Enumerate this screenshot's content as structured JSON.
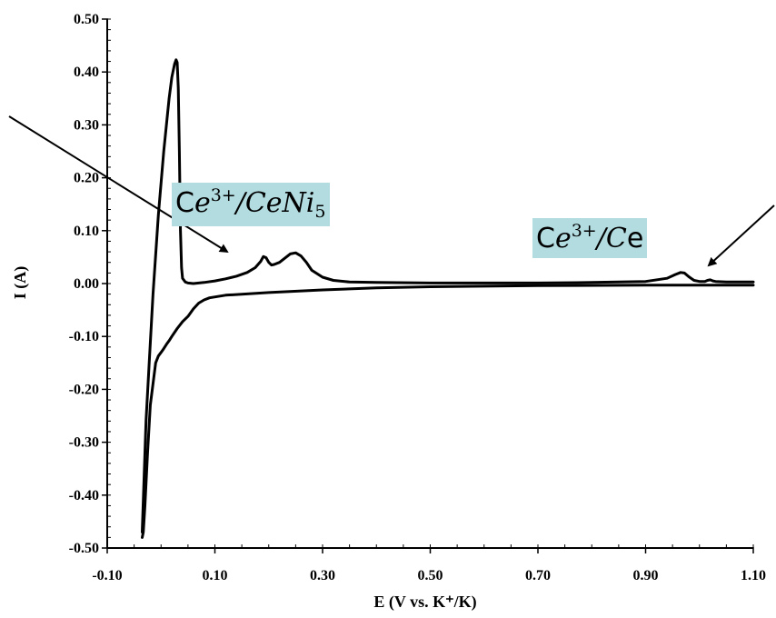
{
  "chart_data": {
    "type": "line",
    "xlabel": "E (V vs. K⁺/K)",
    "ylabel": "I (A)",
    "xlim": [
      -0.1,
      1.1
    ],
    "ylim": [
      -0.5,
      0.5
    ],
    "x_ticks": [
      -0.1,
      0.1,
      0.3,
      0.5,
      0.7,
      0.9,
      1.1
    ],
    "x_tick_labels": [
      "-0.10",
      "0.10",
      "0.30",
      "0.50",
      "0.70",
      "0.90",
      "1.10"
    ],
    "y_ticks": [
      0.5,
      0.4,
      0.3,
      0.2,
      0.1,
      0.0,
      -0.1,
      -0.2,
      -0.3,
      -0.4,
      -0.5
    ],
    "y_tick_labels": [
      "0.50",
      "0.40",
      "0.30",
      "0.20",
      "0.10",
      "0.00",
      "-0.10",
      "-0.20",
      "-0.30",
      "-0.40",
      "-0.50"
    ],
    "grid": false,
    "series": [
      {
        "x": [
          1.1,
          0.9,
          0.7,
          0.5,
          0.4,
          0.3,
          0.2,
          0.12,
          0.09,
          0.08,
          0.07,
          0.06,
          0.05,
          0.04,
          0.03,
          0.02,
          0.015,
          0.01,
          0.005,
          0.0,
          -0.005,
          -0.01,
          -0.02,
          -0.025,
          -0.03,
          -0.033,
          -0.035
        ],
        "y": [
          -0.003,
          -0.003,
          -0.004,
          -0.006,
          -0.008,
          -0.012,
          -0.017,
          -0.022,
          -0.027,
          -0.031,
          -0.037,
          -0.048,
          -0.062,
          -0.072,
          -0.085,
          -0.1,
          -0.108,
          -0.115,
          -0.123,
          -0.13,
          -0.137,
          -0.15,
          -0.23,
          -0.32,
          -0.42,
          -0.47,
          -0.48
        ]
      },
      {
        "x": [
          -0.035,
          -0.032,
          -0.028,
          -0.022,
          -0.015,
          -0.005,
          0.005,
          0.015,
          0.02,
          0.025,
          0.028,
          0.03,
          0.032,
          0.034,
          0.036,
          0.038,
          0.04,
          0.045,
          0.05,
          0.06,
          0.08,
          0.1,
          0.12,
          0.14,
          0.16,
          0.175,
          0.185,
          0.19,
          0.195,
          0.2,
          0.205,
          0.21,
          0.22,
          0.23,
          0.24,
          0.25,
          0.26,
          0.27,
          0.28,
          0.3,
          0.32,
          0.35,
          0.4,
          0.5,
          0.6,
          0.7,
          0.8,
          0.9,
          0.94,
          0.955,
          0.965,
          0.972,
          0.98,
          0.99,
          1.0,
          1.01,
          1.015,
          1.02,
          1.025,
          1.03,
          1.05,
          1.1
        ],
        "y": [
          -0.47,
          -0.38,
          -0.26,
          -0.15,
          -0.02,
          0.13,
          0.25,
          0.35,
          0.39,
          0.415,
          0.423,
          0.418,
          0.37,
          0.25,
          0.1,
          0.03,
          0.01,
          0.003,
          0.001,
          0.0,
          0.002,
          0.005,
          0.009,
          0.014,
          0.021,
          0.03,
          0.042,
          0.051,
          0.049,
          0.04,
          0.035,
          0.036,
          0.04,
          0.048,
          0.056,
          0.058,
          0.052,
          0.04,
          0.025,
          0.012,
          0.006,
          0.003,
          0.002,
          0.001,
          0.001,
          0.001,
          0.002,
          0.004,
          0.01,
          0.017,
          0.021,
          0.02,
          0.013,
          0.006,
          0.004,
          0.004,
          0.006,
          0.007,
          0.005,
          0.004,
          0.003,
          0.003
        ]
      }
    ],
    "annotations": [
      {
        "label": "Ce3+/CeNi5",
        "base": "C",
        "it1": "e",
        "sup": "3+",
        "mid": "/",
        "it2": "CeNi",
        "sub": "5",
        "tail": ""
      },
      {
        "label": "Ce3+/Ce",
        "base": "C",
        "it1": "e",
        "sup": "3+",
        "mid": "/",
        "it2": "C",
        "sub": "",
        "tail": "e"
      }
    ]
  }
}
